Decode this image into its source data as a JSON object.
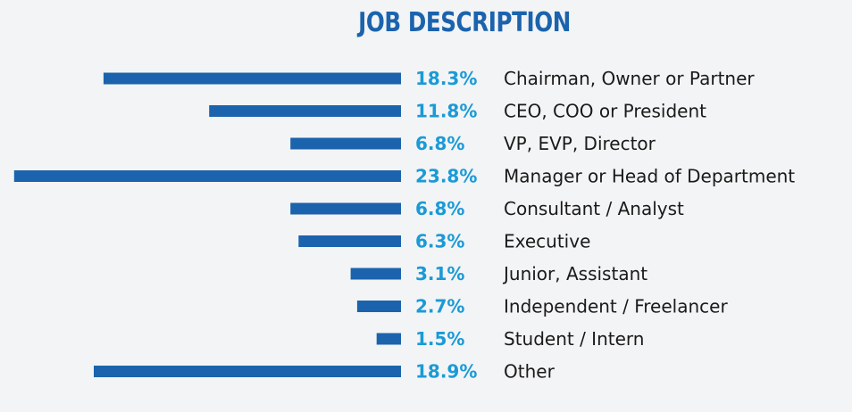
{
  "chart_data": {
    "type": "bar",
    "orientation": "horizontal",
    "title": "JOB DESCRIPTION",
    "categories": [
      "Chairman, Owner or Partner",
      "CEO, COO or President",
      "VP, EVP, Director",
      "Manager or Head of Department",
      "Consultant / Analyst",
      "Executive",
      "Junior, Assistant",
      "Independent / Freelancer",
      "Student / Intern",
      "Other"
    ],
    "values": [
      18.3,
      11.8,
      6.8,
      23.8,
      6.8,
      6.3,
      3.1,
      2.7,
      1.5,
      18.9
    ],
    "value_labels": [
      "18.3%",
      "11.8%",
      "6.8%",
      "23.8%",
      "6.8%",
      "6.3%",
      "3.1%",
      "2.7%",
      "1.5%",
      "18.9%"
    ],
    "unit": "%",
    "grid": false,
    "legend": "none",
    "colors": {
      "bar": "#1b63ad",
      "value_label": "#1a9ad7",
      "title": "#1b63ad",
      "category_label": "#1a1a1a",
      "background": "#f3f4f5"
    }
  }
}
